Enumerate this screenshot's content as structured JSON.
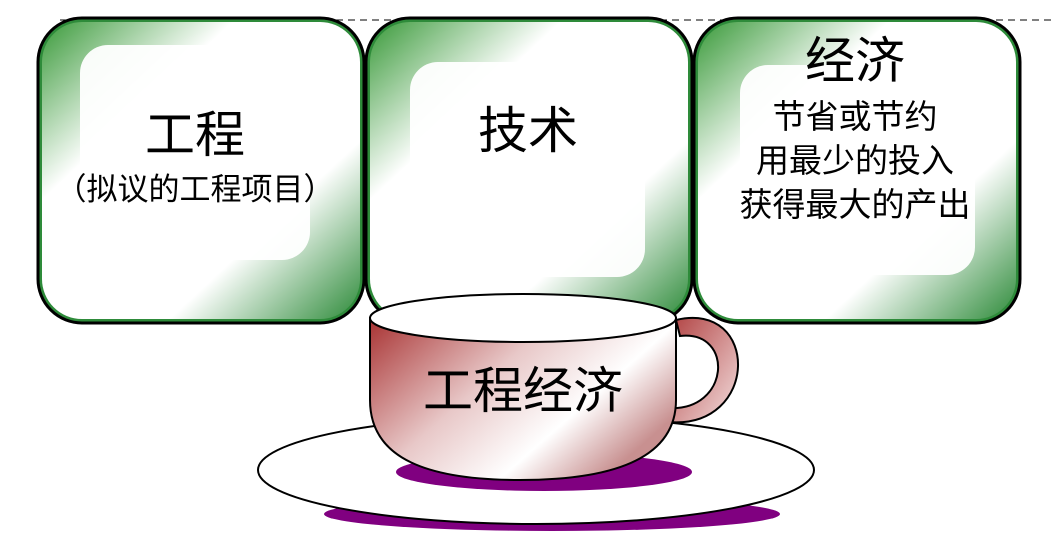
{
  "boxes": [
    {
      "title": "工程",
      "lines": [
        "（拟议的工程项目）"
      ]
    },
    {
      "title": "技术",
      "lines": []
    },
    {
      "title": "经济",
      "lines": [
        "节省或节约",
        "用最少的投入",
        "获得最大的产出"
      ]
    }
  ],
  "cup": {
    "label": "工程经济"
  },
  "colors": {
    "box_green": "#2e8b3a",
    "box_outline": "#000000",
    "cup_red": "#a83a3a",
    "saucer_purple": "#800080",
    "background": "#ffffff"
  }
}
